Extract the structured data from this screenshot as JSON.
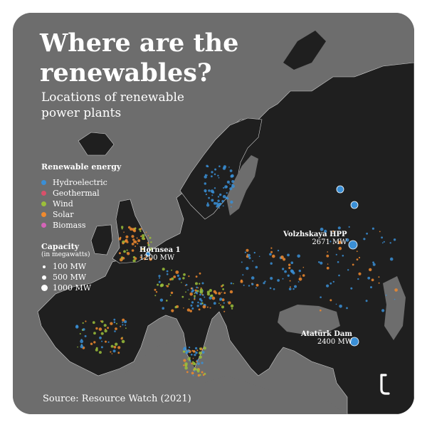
{
  "title": "Where are the renewables?",
  "subtitle": "Locations of renewable power plants",
  "legend": {
    "heading": "Renewable energy",
    "items": [
      {
        "label": "Hydroelectric",
        "color": "#3a8fd6"
      },
      {
        "label": "Geothermal",
        "color": "#d9506a"
      },
      {
        "label": "Wind",
        "color": "#9bbf3a"
      },
      {
        "label": "Solar",
        "color": "#f08a2e"
      },
      {
        "label": "Biomass",
        "color": "#d564b8"
      }
    ]
  },
  "capacity": {
    "heading": "Capacity",
    "unit": "(in megawatts)",
    "items": [
      {
        "label": "100 MW"
      },
      {
        "label": "500 MW"
      },
      {
        "label": "1000 MW"
      }
    ]
  },
  "annotations": [
    {
      "name": "Hornsea 1",
      "value": "1200 MW"
    },
    {
      "name": "Volzhskaya HPP",
      "value": "2671 MW"
    },
    {
      "name": "Atatürk Dam",
      "value": "2400 MW"
    }
  ],
  "source": "Source: Resource Watch (2021)",
  "logo_icon": "brand-logo-icon",
  "colors": {
    "land": "#1f1f1f",
    "sea": "#6d6d6d",
    "border": "#ffffff"
  }
}
